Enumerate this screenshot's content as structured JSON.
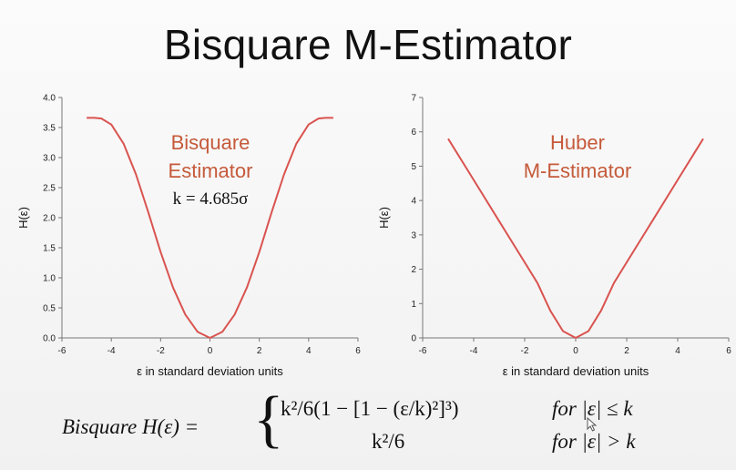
{
  "slide": {
    "title": "Bisquare M-Estimator"
  },
  "chart_data": [
    {
      "type": "line",
      "xlabel": "ε in standard deviation units",
      "ylabel": "H(ε)",
      "xlim": [
        -6,
        6
      ],
      "ylim": [
        0,
        4.0
      ],
      "xticks": [
        "-6",
        "-4",
        "-2",
        "0",
        "2",
        "4",
        "6"
      ],
      "yticks": [
        "0.0",
        "0.5",
        "1.0",
        "1.5",
        "2.0",
        "2.5",
        "3.0",
        "3.5",
        "4.0"
      ],
      "series": [
        {
          "color": "#d9534f",
          "x": [
            -5,
            -4.685,
            -4.4,
            -4,
            -3.5,
            -3,
            -2.5,
            -2,
            -1.5,
            -1,
            -0.5,
            0,
            0.5,
            1,
            1.5,
            2,
            2.5,
            3,
            3.5,
            4,
            4.4,
            4.685,
            5
          ],
          "y": [
            3.66,
            3.66,
            3.65,
            3.55,
            3.23,
            2.72,
            2.09,
            1.43,
            0.84,
            0.39,
            0.1,
            0,
            0.1,
            0.39,
            0.84,
            1.43,
            2.09,
            2.72,
            3.23,
            3.55,
            3.65,
            3.66,
            3.66
          ]
        }
      ],
      "annotations": [
        "Bisquare",
        "Estimator",
        "k = 4.685σ"
      ],
      "annotation_color": "#c55a3a",
      "grid": false
    },
    {
      "type": "line",
      "xlabel": "ε in standard deviation units",
      "ylabel": "H(ε)",
      "xlim": [
        -6,
        6
      ],
      "ylim": [
        0,
        7
      ],
      "xticks": [
        "-6",
        "-4",
        "-2",
        "0",
        "2",
        "4",
        "6"
      ],
      "yticks": [
        "0",
        "1",
        "2",
        "3",
        "4",
        "5",
        "6",
        "7"
      ],
      "series": [
        {
          "color": "#d9534f",
          "x": [
            -5,
            -4,
            -3,
            -2,
            -1.5,
            -1,
            -0.5,
            0,
            0.5,
            1,
            1.5,
            2,
            3,
            4,
            5
          ],
          "y": [
            5.8,
            4.6,
            3.4,
            2.2,
            1.6,
            0.8,
            0.2,
            0,
            0.2,
            0.8,
            1.6,
            2.2,
            3.4,
            4.6,
            5.8
          ]
        }
      ],
      "annotations": [
        "Huber",
        "M-Estimator"
      ],
      "annotation_color": "#c55a3a",
      "grid": false
    }
  ],
  "formula": {
    "lhs": "Bisquare H(ε) =",
    "brace": "{",
    "case1": "k²/6(1 − [1 − (ε/k)²]³)",
    "case2": "k²/6",
    "cond1": "for |ε| ≤ k",
    "cond2": "for |ε| > k"
  }
}
